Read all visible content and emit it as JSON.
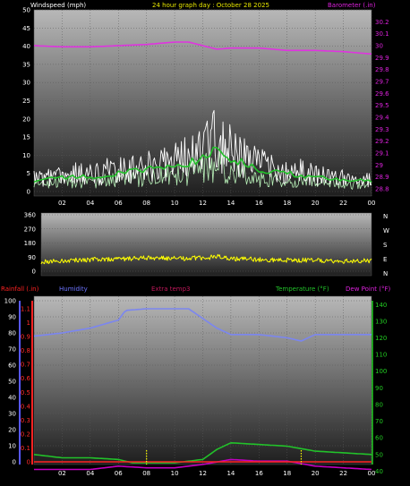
{
  "colors": {
    "background": "#000000",
    "windspeed": "#ffffff",
    "wind_avg": "#22c22a",
    "wind_light": "#b8f0b8",
    "barometer": "#e033e0",
    "direction": "#ffff00",
    "humidity": "#7b86f0",
    "extra_temp": "#c0185a",
    "rainfall": "#ff2222",
    "temperature": "#22c22a",
    "dew_point": "#c000c0",
    "rain_marker": "#ffff00",
    "axis_right_green": "#22cc22",
    "axis_right_barometer": "#dd22dd",
    "axis_left_humidity": "#5858ff"
  },
  "header": {
    "title": "24 hour graph day : October 28 2025",
    "windspeed_label": "Windspeed (mph)",
    "barometer_label": "Barometer (.in)",
    "direction_letters": [
      "N",
      "W",
      "S",
      "E",
      "N"
    ]
  },
  "legend_bottom": {
    "rainfall": "Rainfall (.in)",
    "humidity": "Humidity",
    "extra_temp": "Extra temp3",
    "temperature": "Temperature (°F)",
    "dew_point": "Dew Point (°F)"
  },
  "chart_data": [
    {
      "type": "line",
      "x_ticks": [
        "02",
        "04",
        "06",
        "08",
        "10",
        "12",
        "14",
        "16",
        "18",
        "20",
        "22",
        "00"
      ],
      "y_left_ticks": [
        "0",
        "5",
        "10",
        "15",
        "20",
        "25",
        "30",
        "35",
        "40",
        "45",
        "50"
      ],
      "y_left_range": [
        0,
        50
      ],
      "y_right_ticks": [
        "28.8",
        "28.9",
        "29",
        "29.1",
        "29.2",
        "29.3",
        "29.4",
        "29.5",
        "29.6",
        "29.7",
        "29.8",
        "29.9",
        "30",
        "30.1",
        "30.2"
      ],
      "y_right_range": [
        28.8,
        30.3
      ],
      "series": [
        {
          "name": "Windspeed (mph)",
          "axis": "left",
          "x": [
            0,
            2,
            4,
            6,
            8,
            10,
            12,
            13,
            14,
            16,
            18,
            20,
            22,
            24
          ],
          "y": [
            3,
            4,
            4,
            5,
            6,
            7,
            9,
            12,
            9,
            6,
            5,
            4,
            3,
            3
          ]
        },
        {
          "name": "Barometer (.in)",
          "axis": "right",
          "x": [
            0,
            2,
            4,
            6,
            8,
            10,
            11,
            12,
            13,
            14,
            16,
            18,
            20,
            22,
            24
          ],
          "y": [
            30.0,
            29.99,
            29.99,
            30.0,
            30.01,
            30.03,
            30.03,
            30.0,
            29.97,
            29.98,
            29.98,
            29.96,
            29.96,
            29.95,
            29.93
          ]
        }
      ]
    },
    {
      "type": "line",
      "x_ticks": [],
      "y_left_ticks": [
        "0",
        "90",
        "180",
        "270",
        "360"
      ],
      "y_left_range": [
        0,
        360
      ],
      "series": [
        {
          "name": "Wind direction",
          "axis": "left",
          "x": [
            0,
            2,
            4,
            6,
            8,
            10,
            12,
            13,
            14,
            16,
            18,
            20,
            22,
            24
          ],
          "y": [
            60,
            70,
            75,
            80,
            85,
            80,
            85,
            95,
            80,
            75,
            70,
            70,
            65,
            65
          ]
        }
      ]
    },
    {
      "type": "line",
      "x_ticks": [
        "02",
        "04",
        "06",
        "08",
        "10",
        "12",
        "14",
        "16",
        "18",
        "20",
        "22",
        "00"
      ],
      "y_left_ticks": [
        "0",
        "10",
        "20",
        "30",
        "40",
        "50",
        "60",
        "70",
        "80",
        "90",
        "100"
      ],
      "y_left_range": [
        0,
        100
      ],
      "y_rain_ticks": [
        "0",
        "0.1",
        "0.2",
        "0.3",
        "0.4",
        "0.5",
        "0.6",
        "0.7",
        "0.8",
        "0.9",
        "1",
        "1.1"
      ],
      "y_rain_range": [
        0,
        1.1
      ],
      "y_right_ticks": [
        "40",
        "50",
        "60",
        "70",
        "80",
        "90",
        "100",
        "110",
        "120",
        "130",
        "140"
      ],
      "y_right_range": [
        30,
        145
      ],
      "series": [
        {
          "name": "Humidity",
          "axis": "left",
          "x": [
            0,
            2,
            4,
            6,
            6.5,
            8,
            10,
            11,
            12,
            13,
            14,
            16,
            18,
            19,
            20,
            22,
            24
          ],
          "y": [
            78,
            80,
            83,
            88,
            94,
            95,
            95,
            95,
            89,
            83,
            79,
            79,
            77,
            75,
            79,
            79,
            79
          ]
        },
        {
          "name": "Temperature (°F)",
          "axis": "right",
          "x": [
            0,
            2,
            4,
            6,
            7,
            8,
            10,
            12,
            13,
            14,
            16,
            18,
            20,
            22,
            24
          ],
          "y": [
            50,
            48,
            48,
            47,
            45,
            45,
            45,
            47,
            53,
            57,
            56,
            55,
            52,
            51,
            50
          ]
        },
        {
          "name": "Dew Point (°F)",
          "axis": "right",
          "x": [
            0,
            2,
            4,
            6,
            8,
            10,
            12,
            14,
            16,
            18,
            20,
            22,
            24
          ],
          "y": [
            41,
            41,
            41,
            43,
            42,
            42,
            44,
            47,
            46,
            46,
            43,
            42,
            41
          ]
        },
        {
          "name": "Rainfall (.in)",
          "axis": "rain",
          "x": [
            0,
            24
          ],
          "y": [
            0,
            0
          ]
        }
      ]
    }
  ]
}
